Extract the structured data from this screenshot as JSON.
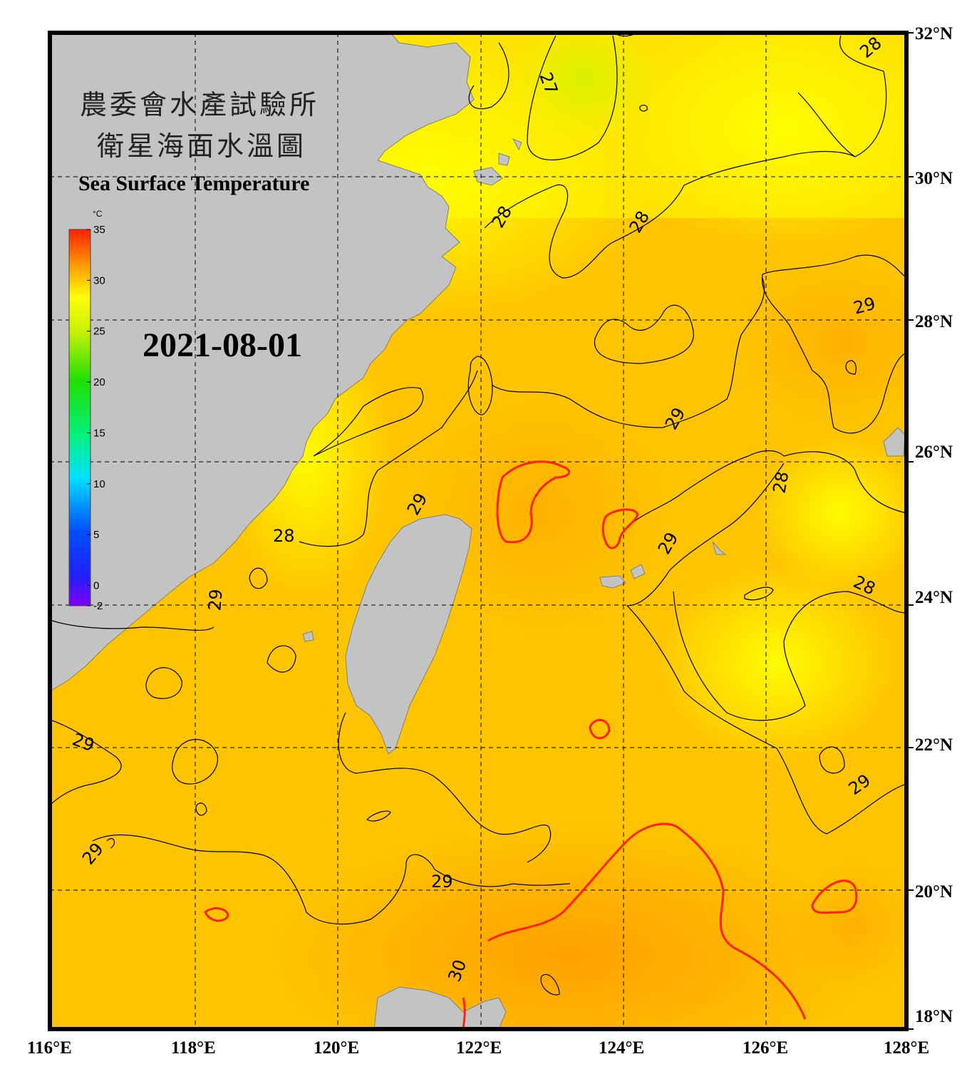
{
  "title_zh_line1": "農委會水產試驗所",
  "title_zh_line2": "衛星海面水溫圖",
  "title_en": "Sea Surface Temperature",
  "date": "2021-08-01",
  "colorbar": {
    "unit": "°C",
    "ticks": [
      "35",
      "30",
      "25",
      "20",
      "15",
      "10",
      "5",
      "0",
      "-2"
    ],
    "range": [
      -2,
      35
    ]
  },
  "longitude_labels": [
    "116°E",
    "118°E",
    "120°E",
    "122°E",
    "124°E",
    "126°E",
    "128°E"
  ],
  "latitude_labels": [
    "32°N",
    "30°N",
    "28°N",
    "26°N",
    "24°N",
    "22°N",
    "20°N",
    "18°N"
  ],
  "contour_labels": [
    "27",
    "28",
    "28",
    "28",
    "29",
    "29",
    "29",
    "28",
    "29",
    "29",
    "28",
    "28",
    "29",
    "29",
    "29",
    "29",
    "29",
    "30"
  ],
  "colors": {
    "land": "#c3c3c3",
    "warm": "#ff2a10",
    "cool": "#ffff00",
    "sea_mid": "#ffc400"
  }
}
